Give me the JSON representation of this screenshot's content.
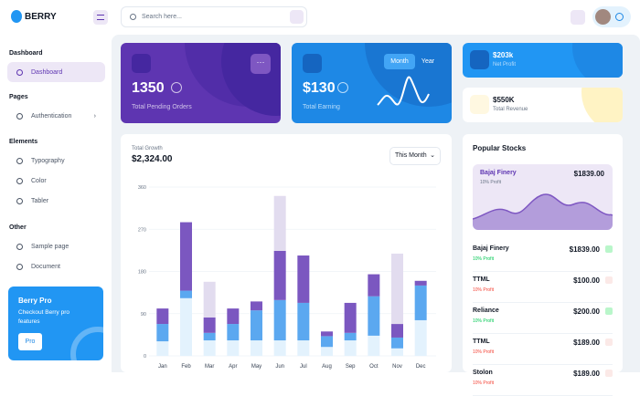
{
  "header": {
    "logo": "BERRY",
    "search_placeholder": "Search here..."
  },
  "sidebar": {
    "sections": [
      {
        "title": "Dashboard",
        "items": [
          "Dashboard"
        ]
      },
      {
        "title": "Pages",
        "items": [
          "Authentication"
        ]
      },
      {
        "title": "Elements",
        "items": [
          "Typography",
          "Color",
          "Tabler"
        ]
      },
      {
        "title": "Other",
        "items": [
          "Sample page",
          "Document"
        ]
      }
    ],
    "promo": {
      "title": "Berry Pro",
      "text": "Checkout Berry pro features",
      "button": "Pro"
    }
  },
  "cards": {
    "pending": {
      "value": "1350",
      "label": "Total Pending Orders"
    },
    "earning": {
      "value": "$130",
      "label": "Total Earning",
      "tabs": [
        "Month",
        "Year"
      ]
    },
    "profit": {
      "value": "$203k",
      "label": "Net Profit"
    },
    "revenue": {
      "value": "$550K",
      "label": "Total Revenue"
    }
  },
  "chart_data": {
    "type": "bar",
    "stacked": true,
    "subtitle": "Total Growth",
    "title": "$2,324.00",
    "period": "This Month",
    "categories": [
      "Jan",
      "Feb",
      "Mar",
      "Apr",
      "May",
      "Jun",
      "Jul",
      "Aug",
      "Sep",
      "Oct",
      "Nov",
      "Dec"
    ],
    "series": [
      {
        "color": "#e3f2fd",
        "values": [
          31,
          123,
          33,
          33,
          33,
          33,
          33,
          19,
          33,
          43,
          16,
          76
        ]
      },
      {
        "color": "#5ba8f0",
        "values": [
          37,
          16,
          16,
          35,
          64,
          86,
          80,
          23,
          16,
          84,
          23,
          74
        ]
      },
      {
        "color": "#7b57c0",
        "values": [
          33,
          146,
          33,
          33,
          19,
          105,
          101,
          10,
          64,
          47,
          29,
          10
        ]
      },
      {
        "color": "#e2dcef",
        "values": [
          0,
          0,
          76,
          0,
          0,
          117,
          0,
          0,
          0,
          0,
          150,
          0
        ]
      }
    ],
    "ylim": [
      0,
      360
    ],
    "yticks": [
      0,
      90,
      180,
      270,
      360
    ],
    "grid": true
  },
  "stocks": {
    "title": "Popular Stocks",
    "featured": {
      "name": "Bajaj Finery",
      "price": "$1839.00",
      "change": "10% Profit"
    },
    "items": [
      {
        "name": "Bajaj Finery",
        "price": "$1839.00",
        "change": "10% Profit",
        "trend": "up"
      },
      {
        "name": "TTML",
        "price": "$100.00",
        "change": "10% Profit",
        "trend": "down"
      },
      {
        "name": "Reliance",
        "price": "$200.00",
        "change": "10% Profit",
        "trend": "up"
      },
      {
        "name": "TTML",
        "price": "$189.00",
        "change": "10% Profit",
        "trend": "down"
      },
      {
        "name": "Stolon",
        "price": "$189.00",
        "change": "10% Profit",
        "trend": "down"
      }
    ]
  }
}
